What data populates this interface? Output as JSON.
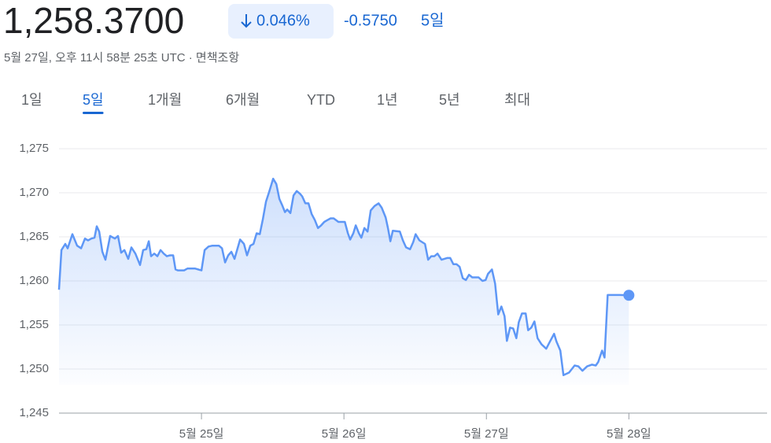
{
  "header": {
    "price": "1,258.3700",
    "change_percent": "0.046%",
    "change": "-0.5750",
    "period": "5일",
    "timestamp": "5월 27일, 오후 11시 58분 25초 UTC",
    "disclaimer": "면책조항"
  },
  "tabs": [
    "1일",
    "5일",
    "1개월",
    "6개월",
    "YTD",
    "1년",
    "5년",
    "최대"
  ],
  "active_tab": 1,
  "chart_data": {
    "type": "line",
    "color": "#5e97f6",
    "grid": true,
    "xlim": [
      24.0,
      28.97
    ],
    "xticks": [
      {
        "value": 25,
        "label": "5월 25일"
      },
      {
        "value": 26,
        "label": "5월 26일"
      },
      {
        "value": 27,
        "label": "5월 27일"
      },
      {
        "value": 28,
        "label": "5월 28일"
      }
    ],
    "ylim": [
      1245,
      1275
    ],
    "yticks": [
      {
        "value": 1245,
        "label": "1,245"
      },
      {
        "value": 1250,
        "label": "1,250"
      },
      {
        "value": 1255,
        "label": "1,255"
      },
      {
        "value": 1260,
        "label": "1,260"
      },
      {
        "value": 1265,
        "label": "1,265"
      },
      {
        "value": 1270,
        "label": "1,270"
      },
      {
        "value": 1275,
        "label": "1,275"
      }
    ],
    "x": [
      24.0,
      24.017,
      24.044,
      24.061,
      24.094,
      24.127,
      24.155,
      24.182,
      24.204,
      24.227,
      24.249,
      24.265,
      24.282,
      24.304,
      24.326,
      24.359,
      24.392,
      24.414,
      24.436,
      24.459,
      24.486,
      24.508,
      24.536,
      24.569,
      24.591,
      24.613,
      24.63,
      24.646,
      24.669,
      24.691,
      24.713,
      24.735,
      24.757,
      24.779,
      24.801,
      24.818,
      24.834,
      24.878,
      24.901,
      24.956,
      25.0,
      25.022,
      25.05,
      25.077,
      25.122,
      25.144,
      25.166,
      25.188,
      25.21,
      25.232,
      25.271,
      25.298,
      25.32,
      25.343,
      25.365,
      25.387,
      25.409,
      25.431,
      25.453,
      25.475,
      25.503,
      25.525,
      25.547,
      25.569,
      25.586,
      25.602,
      25.624,
      25.646,
      25.669,
      25.691,
      25.707,
      25.729,
      25.751,
      25.773,
      25.796,
      25.818,
      25.84,
      25.862,
      25.884,
      25.906,
      25.928,
      25.961,
      26.006,
      26.028,
      26.044,
      26.066,
      26.083,
      26.105,
      26.122,
      26.144,
      26.166,
      26.188,
      26.215,
      26.243,
      26.265,
      26.293,
      26.309,
      26.326,
      26.343,
      26.392,
      26.414,
      26.436,
      26.464,
      26.486,
      26.503,
      26.53,
      26.569,
      26.591,
      26.613,
      26.635,
      26.657,
      26.685,
      26.724,
      26.746,
      26.768,
      26.79,
      26.812,
      26.834,
      26.856,
      26.878,
      26.901,
      26.945,
      26.972,
      26.994,
      27.011,
      27.039,
      27.061,
      27.083,
      27.105,
      27.127,
      27.144,
      27.166,
      27.188,
      27.21,
      27.227,
      27.249,
      27.276,
      27.293,
      27.315,
      27.337,
      27.359,
      27.387,
      27.42,
      27.442,
      27.475,
      27.492,
      27.519,
      27.541,
      27.58,
      27.619,
      27.646,
      27.674,
      27.707,
      27.74,
      27.768,
      27.785,
      27.812,
      27.829,
      27.851,
      27.934,
      28.0
    ],
    "values": [
      1259.0,
      1263.5,
      1264.2,
      1263.7,
      1265.3,
      1264.0,
      1263.7,
      1264.8,
      1264.6,
      1264.8,
      1264.9,
      1266.2,
      1265.6,
      1263.3,
      1262.4,
      1265.1,
      1264.8,
      1265.1,
      1263.2,
      1263.5,
      1262.5,
      1263.8,
      1263.1,
      1261.8,
      1263.5,
      1263.6,
      1264.5,
      1262.8,
      1263.1,
      1262.8,
      1263.5,
      1263.1,
      1262.8,
      1262.9,
      1262.9,
      1261.3,
      1261.2,
      1261.2,
      1261.4,
      1261.4,
      1261.2,
      1263.5,
      1263.9,
      1264.0,
      1264.0,
      1263.7,
      1262.1,
      1262.9,
      1263.3,
      1262.5,
      1264.7,
      1264.2,
      1262.9,
      1264.0,
      1264.2,
      1265.4,
      1265.3,
      1267.0,
      1269.0,
      1270.1,
      1271.6,
      1271.0,
      1269.3,
      1268.5,
      1267.8,
      1268.1,
      1267.7,
      1269.7,
      1270.2,
      1269.9,
      1269.6,
      1268.8,
      1268.8,
      1267.6,
      1266.9,
      1266.0,
      1266.3,
      1266.7,
      1266.9,
      1267.1,
      1267.1,
      1266.7,
      1266.7,
      1265.4,
      1264.7,
      1265.4,
      1266.3,
      1265.4,
      1264.9,
      1266.0,
      1265.6,
      1268.0,
      1268.5,
      1268.8,
      1268.3,
      1267.2,
      1266.0,
      1264.5,
      1265.7,
      1265.6,
      1264.6,
      1263.8,
      1263.6,
      1264.4,
      1265.3,
      1264.6,
      1264.2,
      1262.4,
      1262.8,
      1262.8,
      1263.1,
      1262.4,
      1262.6,
      1262.6,
      1261.9,
      1261.9,
      1261.6,
      1260.3,
      1260.1,
      1260.7,
      1260.4,
      1260.4,
      1260.0,
      1260.1,
      1260.8,
      1261.3,
      1259.7,
      1256.2,
      1257.1,
      1256.0,
      1253.2,
      1254.7,
      1254.6,
      1253.5,
      1255.3,
      1256.3,
      1256.3,
      1254.4,
      1254.7,
      1255.4,
      1253.5,
      1252.8,
      1252.3,
      1253.0,
      1254.0,
      1253.1,
      1252.1,
      1249.3,
      1249.6,
      1250.4,
      1250.3,
      1249.8,
      1250.3,
      1250.5,
      1250.4,
      1250.8,
      1252.1,
      1251.3,
      1258.4,
      1258.4,
      1258.37
    ]
  }
}
